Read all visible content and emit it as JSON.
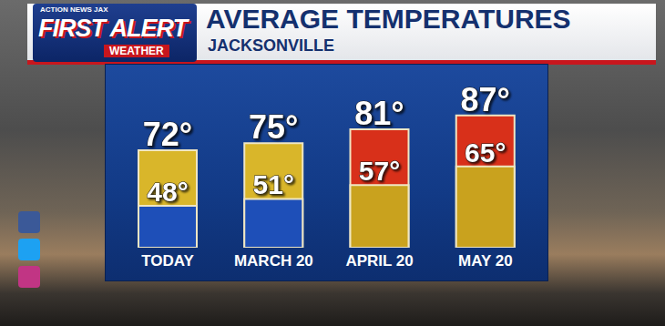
{
  "chart_data": {
    "type": "bar",
    "title": "AVERAGE TEMPERATURES",
    "subtitle": "JACKSONVILLE",
    "annotations": [
      "ACTION NEWS JAX",
      "FIRST ALERT",
      "WEATHER"
    ],
    "categories": [
      "TODAY",
      "MARCH 20",
      "APRIL 20",
      "MAY 20"
    ],
    "series": [
      {
        "values": [
          72,
          75,
          81,
          87
        ],
        "value_labels": [
          "72°",
          "75°",
          "81°",
          "87°"
        ],
        "colors": [
          "#d9b62a",
          "#d9b62a",
          "#d8301a",
          "#d8301a"
        ]
      },
      {
        "values": [
          48,
          51,
          57,
          65
        ],
        "value_labels": [
          "48°",
          "51°",
          "57°",
          "65°"
        ],
        "colors": [
          "#1e4fb8",
          "#1e4fb8",
          "#c9a21e",
          "#c9a21e"
        ]
      }
    ],
    "ylim": [
      30,
      90
    ],
    "tick_labels": "x",
    "data_labels": true,
    "grid": false
  }
}
